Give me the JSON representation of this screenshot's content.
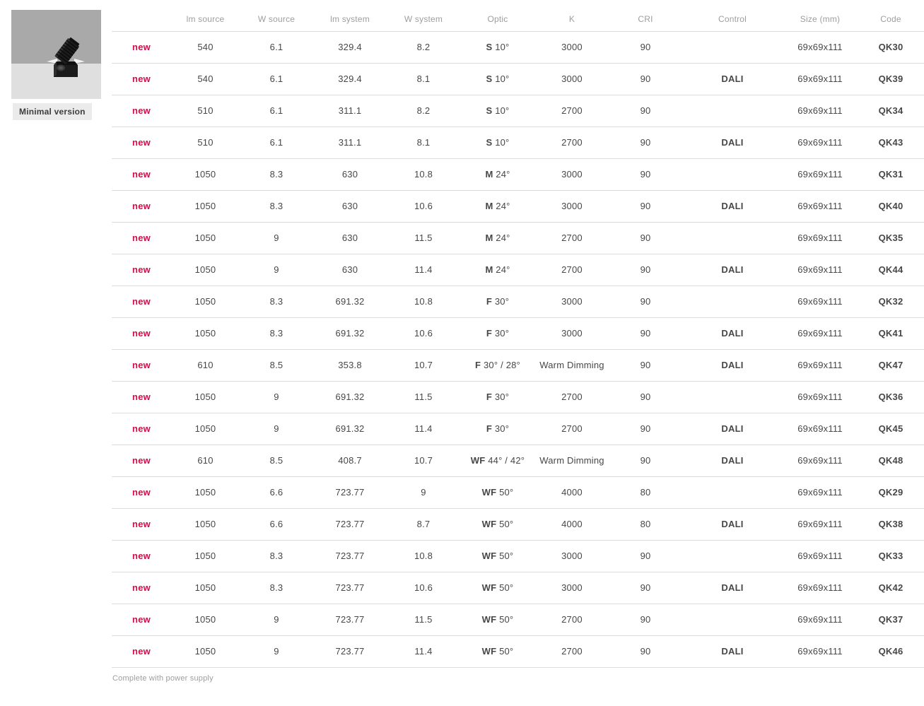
{
  "product": {
    "label": "Minimal version",
    "image_icon": "recessed-adjustable-spotlight"
  },
  "table": {
    "new_badge": "new",
    "columns": [
      "lm source",
      "W source",
      "lm system",
      "W system",
      "Optic",
      "K",
      "CRI",
      "Control",
      "Size (mm)",
      "Code"
    ],
    "rows": [
      {
        "lm_source": "540",
        "w_source": "6.1",
        "lm_system": "329.4",
        "w_system": "8.2",
        "optic": "S 10°",
        "k": "3000",
        "cri": "90",
        "control": "",
        "size": "69x69x111",
        "code": "QK30"
      },
      {
        "lm_source": "540",
        "w_source": "6.1",
        "lm_system": "329.4",
        "w_system": "8.1",
        "optic": "S 10°",
        "k": "3000",
        "cri": "90",
        "control": "DALI",
        "size": "69x69x111",
        "code": "QK39"
      },
      {
        "lm_source": "510",
        "w_source": "6.1",
        "lm_system": "311.1",
        "w_system": "8.2",
        "optic": "S 10°",
        "k": "2700",
        "cri": "90",
        "control": "",
        "size": "69x69x111",
        "code": "QK34"
      },
      {
        "lm_source": "510",
        "w_source": "6.1",
        "lm_system": "311.1",
        "w_system": "8.1",
        "optic": "S 10°",
        "k": "2700",
        "cri": "90",
        "control": "DALI",
        "size": "69x69x111",
        "code": "QK43"
      },
      {
        "lm_source": "1050",
        "w_source": "8.3",
        "lm_system": "630",
        "w_system": "10.8",
        "optic": "M 24°",
        "k": "3000",
        "cri": "90",
        "control": "",
        "size": "69x69x111",
        "code": "QK31"
      },
      {
        "lm_source": "1050",
        "w_source": "8.3",
        "lm_system": "630",
        "w_system": "10.6",
        "optic": "M 24°",
        "k": "3000",
        "cri": "90",
        "control": "DALI",
        "size": "69x69x111",
        "code": "QK40"
      },
      {
        "lm_source": "1050",
        "w_source": "9",
        "lm_system": "630",
        "w_system": "11.5",
        "optic": "M 24°",
        "k": "2700",
        "cri": "90",
        "control": "",
        "size": "69x69x111",
        "code": "QK35"
      },
      {
        "lm_source": "1050",
        "w_source": "9",
        "lm_system": "630",
        "w_system": "11.4",
        "optic": "M 24°",
        "k": "2700",
        "cri": "90",
        "control": "DALI",
        "size": "69x69x111",
        "code": "QK44"
      },
      {
        "lm_source": "1050",
        "w_source": "8.3",
        "lm_system": "691.32",
        "w_system": "10.8",
        "optic": "F 30°",
        "k": "3000",
        "cri": "90",
        "control": "",
        "size": "69x69x111",
        "code": "QK32"
      },
      {
        "lm_source": "1050",
        "w_source": "8.3",
        "lm_system": "691.32",
        "w_system": "10.6",
        "optic": "F 30°",
        "k": "3000",
        "cri": "90",
        "control": "DALI",
        "size": "69x69x111",
        "code": "QK41"
      },
      {
        "lm_source": "610",
        "w_source": "8.5",
        "lm_system": "353.8",
        "w_system": "10.7",
        "optic": "F 30° / 28°",
        "k": "Warm Dimming",
        "cri": "90",
        "control": "DALI",
        "size": "69x69x111",
        "code": "QK47"
      },
      {
        "lm_source": "1050",
        "w_source": "9",
        "lm_system": "691.32",
        "w_system": "11.5",
        "optic": "F 30°",
        "k": "2700",
        "cri": "90",
        "control": "",
        "size": "69x69x111",
        "code": "QK36"
      },
      {
        "lm_source": "1050",
        "w_source": "9",
        "lm_system": "691.32",
        "w_system": "11.4",
        "optic": "F 30°",
        "k": "2700",
        "cri": "90",
        "control": "DALI",
        "size": "69x69x111",
        "code": "QK45"
      },
      {
        "lm_source": "610",
        "w_source": "8.5",
        "lm_system": "408.7",
        "w_system": "10.7",
        "optic": "WF 44° / 42°",
        "k": "Warm Dimming",
        "cri": "90",
        "control": "DALI",
        "size": "69x69x111",
        "code": "QK48"
      },
      {
        "lm_source": "1050",
        "w_source": "6.6",
        "lm_system": "723.77",
        "w_system": "9",
        "optic": "WF 50°",
        "k": "4000",
        "cri": "80",
        "control": "",
        "size": "69x69x111",
        "code": "QK29"
      },
      {
        "lm_source": "1050",
        "w_source": "6.6",
        "lm_system": "723.77",
        "w_system": "8.7",
        "optic": "WF 50°",
        "k": "4000",
        "cri": "80",
        "control": "DALI",
        "size": "69x69x111",
        "code": "QK38"
      },
      {
        "lm_source": "1050",
        "w_source": "8.3",
        "lm_system": "723.77",
        "w_system": "10.8",
        "optic": "WF 50°",
        "k": "3000",
        "cri": "90",
        "control": "",
        "size": "69x69x111",
        "code": "QK33"
      },
      {
        "lm_source": "1050",
        "w_source": "8.3",
        "lm_system": "723.77",
        "w_system": "10.6",
        "optic": "WF 50°",
        "k": "3000",
        "cri": "90",
        "control": "DALI",
        "size": "69x69x111",
        "code": "QK42"
      },
      {
        "lm_source": "1050",
        "w_source": "9",
        "lm_system": "723.77",
        "w_system": "11.5",
        "optic": "WF 50°",
        "k": "2700",
        "cri": "90",
        "control": "",
        "size": "69x69x111",
        "code": "QK37"
      },
      {
        "lm_source": "1050",
        "w_source": "9",
        "lm_system": "723.77",
        "w_system": "11.4",
        "optic": "WF 50°",
        "k": "2700",
        "cri": "90",
        "control": "DALI",
        "size": "69x69x111",
        "code": "QK46"
      }
    ],
    "footer_note": "Complete with power supply"
  },
  "colors": {
    "accent": "#cc1048",
    "value_text": "#474747",
    "header_text": "#9e9e9e",
    "separator": "#dcdcdc",
    "image_bg_top": "#a9a9a9",
    "image_bg_bottom": "#dfdfdf",
    "label_bg": "#ebebeb"
  }
}
